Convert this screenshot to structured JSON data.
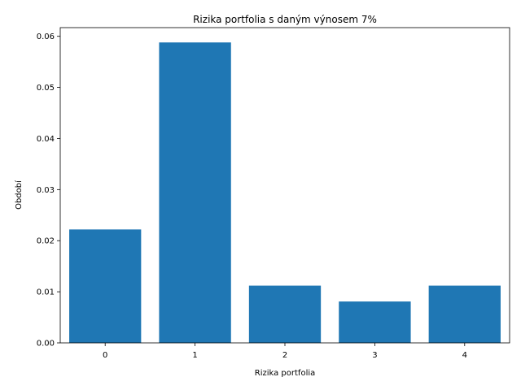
{
  "chart_data": {
    "type": "bar",
    "title": "Rizika portfolia s daným výnosem 7%",
    "xlabel": "Rizika portfolia",
    "ylabel": "Období",
    "categories": [
      "0",
      "1",
      "2",
      "3",
      "4"
    ],
    "x": [
      0,
      1,
      2,
      3,
      4
    ],
    "values": [
      0.0222,
      0.0588,
      0.0112,
      0.0081,
      0.0112
    ],
    "xlim": [
      -0.5,
      4.5
    ],
    "ylim": [
      0,
      0.0617
    ],
    "yticks": [
      0.0,
      0.01,
      0.02,
      0.03,
      0.04,
      0.05,
      0.06
    ],
    "ytick_labels": [
      "0.00",
      "0.01",
      "0.02",
      "0.03",
      "0.04",
      "0.05",
      "0.06"
    ],
    "bar_color": "#1f77b4",
    "grid": false,
    "legend": "none"
  }
}
